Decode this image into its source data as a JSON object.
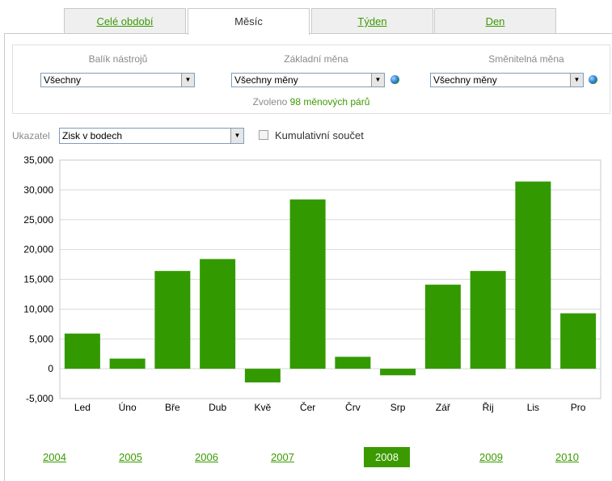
{
  "tabs": [
    {
      "label": "Celé období",
      "active": false
    },
    {
      "label": "Měsíc",
      "active": true
    },
    {
      "label": "Týden",
      "active": false
    },
    {
      "label": "Den",
      "active": false
    }
  ],
  "filters": {
    "toolkit": {
      "label": "Balík nástrojů",
      "value": "Všechny"
    },
    "base_currency": {
      "label": "Základní měna",
      "value": "Všechny měny"
    },
    "quote_currency": {
      "label": "Směnitelná měna",
      "value": "Všechny měny"
    },
    "selected_prefix": "Zvoleno",
    "selected_count": "98",
    "selected_suffix": "měnových párů"
  },
  "indicator": {
    "label": "Ukazatel",
    "value": "Zisk v bodech",
    "cumulative_label": "Kumulativní součet",
    "cumulative_checked": false
  },
  "colors": {
    "accent": "#3a9a00",
    "bar": "#339900"
  },
  "chart_data": {
    "type": "bar",
    "categories": [
      "Led",
      "Úno",
      "Bře",
      "Dub",
      "Kvě",
      "Čer",
      "Črv",
      "Srp",
      "Zář",
      "Řij",
      "Lis",
      "Pro"
    ],
    "values": [
      5900,
      1700,
      16400,
      18400,
      -2300,
      28400,
      2000,
      -1100,
      14100,
      16400,
      31400,
      9300
    ],
    "ylim": [
      -5000,
      35000
    ],
    "yticks": [
      "35,000",
      "30,000",
      "25,000",
      "20,000",
      "15,000",
      "10,000",
      "5,000",
      "0",
      "-5,000"
    ],
    "ytick_values": [
      35000,
      30000,
      25000,
      20000,
      15000,
      10000,
      5000,
      0,
      -5000
    ],
    "grid": true
  },
  "years": [
    {
      "label": "2004",
      "active": false
    },
    {
      "label": "2005",
      "active": false
    },
    {
      "label": "2006",
      "active": false
    },
    {
      "label": "2007",
      "active": false
    },
    {
      "label": "2008",
      "active": true
    },
    {
      "label": "2009",
      "active": false
    },
    {
      "label": "2010",
      "active": false
    }
  ]
}
